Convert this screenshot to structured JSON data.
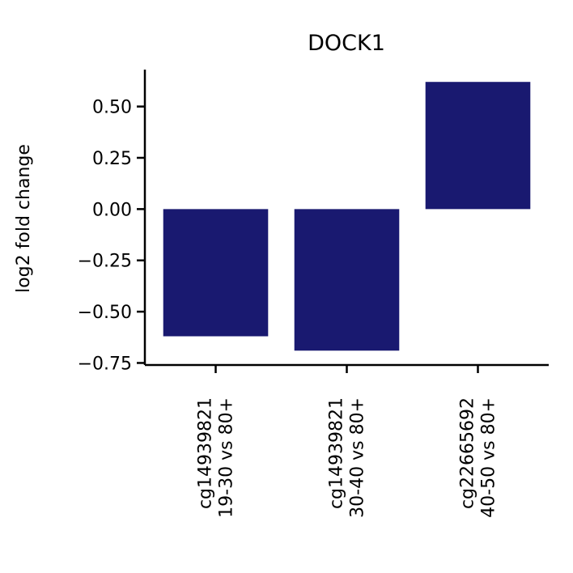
{
  "chart_data": {
    "type": "bar",
    "title": "DOCK1",
    "xlabel": "",
    "ylabel": "log2 fold change",
    "categories": [
      [
        "cg14939821",
        "19-30 vs 80+"
      ],
      [
        "cg14939821",
        "30-40 vs 80+"
      ],
      [
        "cg22665692",
        "40-50 vs 80+"
      ]
    ],
    "values": [
      -0.62,
      -0.69,
      0.62
    ],
    "ylim": [
      -0.76,
      0.68
    ],
    "yticks": [
      0.5,
      0.25,
      0.0,
      -0.25,
      -0.5,
      -0.75
    ],
    "ytick_labels": [
      "0.50",
      "0.25",
      "0.00",
      "−0.25",
      "−0.50",
      "−0.75"
    ],
    "bar_color": "#191970",
    "grid": false,
    "legend": "none"
  }
}
